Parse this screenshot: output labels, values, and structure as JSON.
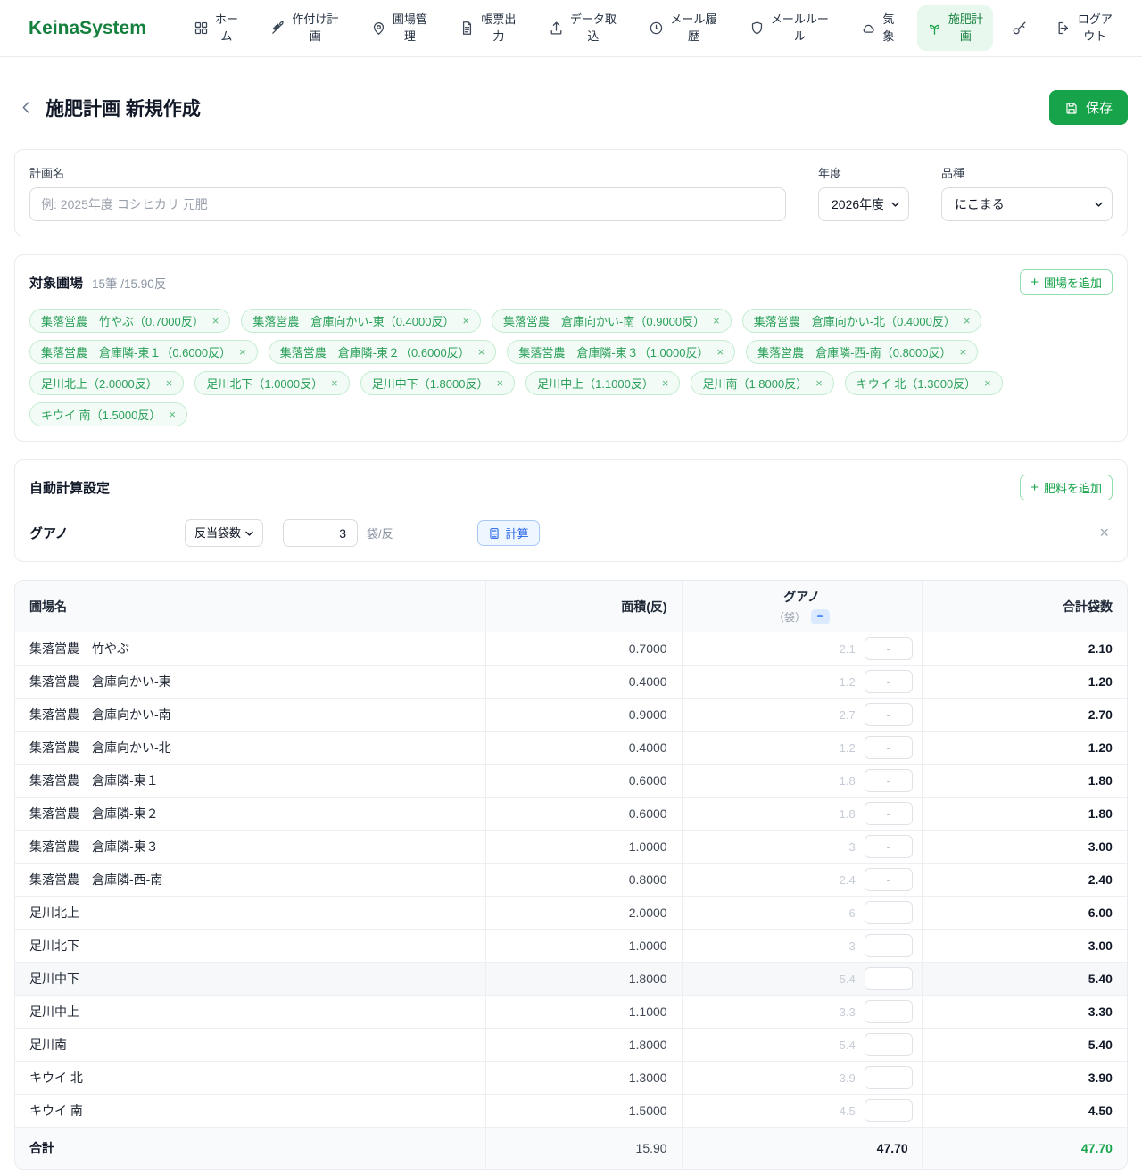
{
  "brand": {
    "name": "KeinaSystem"
  },
  "glyphs": {
    "plus": "+",
    "close": "×"
  },
  "nav": {
    "items": [
      {
        "id": "home",
        "label": "ホーム",
        "lines": [
          "ホー",
          "ム"
        ],
        "icon": "grid-icon",
        "active": false
      },
      {
        "id": "cropping-plan",
        "label": "作付け計画",
        "lines": [
          "作付け計",
          "画"
        ],
        "icon": "wheat-icon",
        "active": false
      },
      {
        "id": "field-management",
        "label": "圃場管理",
        "lines": [
          "圃場管",
          "理"
        ],
        "icon": "map-pin-icon",
        "active": false
      },
      {
        "id": "report-output",
        "label": "帳票出力",
        "lines": [
          "帳票出",
          "力"
        ],
        "icon": "document-icon",
        "active": false
      },
      {
        "id": "data-import",
        "label": "データ取込",
        "lines": [
          "データ取",
          "込"
        ],
        "icon": "upload-icon",
        "active": false
      },
      {
        "id": "mail-history",
        "label": "メール履歴",
        "lines": [
          "メール履",
          "歴"
        ],
        "icon": "history-icon",
        "active": false
      },
      {
        "id": "mail-rules",
        "label": "メールルール",
        "lines": [
          "メールルー",
          "ル"
        ],
        "icon": "shield-icon",
        "active": false
      },
      {
        "id": "weather",
        "label": "気象",
        "lines": [
          "気",
          "象"
        ],
        "icon": "cloud-icon",
        "active": false
      },
      {
        "id": "fertilization-plan",
        "label": "施肥計画",
        "lines": [
          "施肥計",
          "画"
        ],
        "icon": "sprout-icon",
        "active": true
      },
      {
        "id": "key",
        "label": "",
        "lines": [],
        "icon": "key-icon",
        "active": false
      },
      {
        "id": "logout",
        "label": "ログアウト",
        "lines": [
          "ログア",
          "ウト"
        ],
        "icon": "logout-icon",
        "active": false
      }
    ]
  },
  "page": {
    "title": "施肥計画 新規作成",
    "save_label": "保存"
  },
  "plan_form": {
    "plan_name_label": "計画名",
    "plan_name_placeholder": "例: 2025年度 コシヒカリ 元肥",
    "year_label": "年度",
    "year_value": "2026年度",
    "variety_label": "品種",
    "variety_value": "にこまる"
  },
  "target_fields": {
    "title": "対象圃場",
    "count_label": "15筆 /15.90反",
    "add_label": "圃場を追加",
    "chips": [
      "集落営農　竹やぶ（0.7000反）",
      "集落営農　倉庫向かい-東（0.4000反）",
      "集落営農　倉庫向かい-南（0.9000反）",
      "集落営農　倉庫向かい-北（0.4000反）",
      "集落営農　倉庫隣-東１（0.6000反）",
      "集落営農　倉庫隣-東２（0.6000反）",
      "集落営農　倉庫隣-東３（1.0000反）",
      "集落営農　倉庫隣-西-南（0.8000反）",
      "足川北上（2.0000反）",
      "足川北下（1.0000反）",
      "足川中下（1.8000反）",
      "足川中上（1.1000反）",
      "足川南（1.8000反）",
      "キウイ 北（1.3000反）",
      "キウイ 南（1.5000反）"
    ]
  },
  "auto_calc": {
    "title": "自動計算設定",
    "add_label": "肥料を追加",
    "fertilizer_name": "グアノ",
    "mode_value": "反当袋数",
    "amount_value": "3",
    "unit": "袋/反",
    "calc_label": "計算"
  },
  "table": {
    "headers": {
      "field": "圃場名",
      "area": "面積(反)",
      "fertilizer": "グアノ",
      "fertilizer_unit": "（袋）",
      "approx_badge": "≃",
      "total": "合計袋数"
    },
    "override_placeholder": "-",
    "rows": [
      {
        "name": "集落営農　竹やぶ",
        "area": "0.7000",
        "guano": "2.1",
        "total": "2.10",
        "highlight": false
      },
      {
        "name": "集落営農　倉庫向かい-東",
        "area": "0.4000",
        "guano": "1.2",
        "total": "1.20",
        "highlight": false
      },
      {
        "name": "集落営農　倉庫向かい-南",
        "area": "0.9000",
        "guano": "2.7",
        "total": "2.70",
        "highlight": false
      },
      {
        "name": "集落営農　倉庫向かい-北",
        "area": "0.4000",
        "guano": "1.2",
        "total": "1.20",
        "highlight": false
      },
      {
        "name": "集落営農　倉庫隣-東１",
        "area": "0.6000",
        "guano": "1.8",
        "total": "1.80",
        "highlight": false
      },
      {
        "name": "集落営農　倉庫隣-東２",
        "area": "0.6000",
        "guano": "1.8",
        "total": "1.80",
        "highlight": false
      },
      {
        "name": "集落営農　倉庫隣-東３",
        "area": "1.0000",
        "guano": "3",
        "total": "3.00",
        "highlight": false
      },
      {
        "name": "集落営農　倉庫隣-西-南",
        "area": "0.8000",
        "guano": "2.4",
        "total": "2.40",
        "highlight": false
      },
      {
        "name": "足川北上",
        "area": "2.0000",
        "guano": "6",
        "total": "6.00",
        "highlight": false
      },
      {
        "name": "足川北下",
        "area": "1.0000",
        "guano": "3",
        "total": "3.00",
        "highlight": false
      },
      {
        "name": "足川中下",
        "area": "1.8000",
        "guano": "5.4",
        "total": "5.40",
        "highlight": true
      },
      {
        "name": "足川中上",
        "area": "1.1000",
        "guano": "3.3",
        "total": "3.30",
        "highlight": false
      },
      {
        "name": "足川南",
        "area": "1.8000",
        "guano": "5.4",
        "total": "5.40",
        "highlight": false
      },
      {
        "name": "キウイ 北",
        "area": "1.3000",
        "guano": "3.9",
        "total": "3.90",
        "highlight": false
      },
      {
        "name": "キウイ 南",
        "area": "1.5000",
        "guano": "4.5",
        "total": "4.50",
        "highlight": false
      }
    ],
    "footer": {
      "label": "合計",
      "area": "15.90",
      "guano": "47.70",
      "total": "47.70"
    }
  }
}
